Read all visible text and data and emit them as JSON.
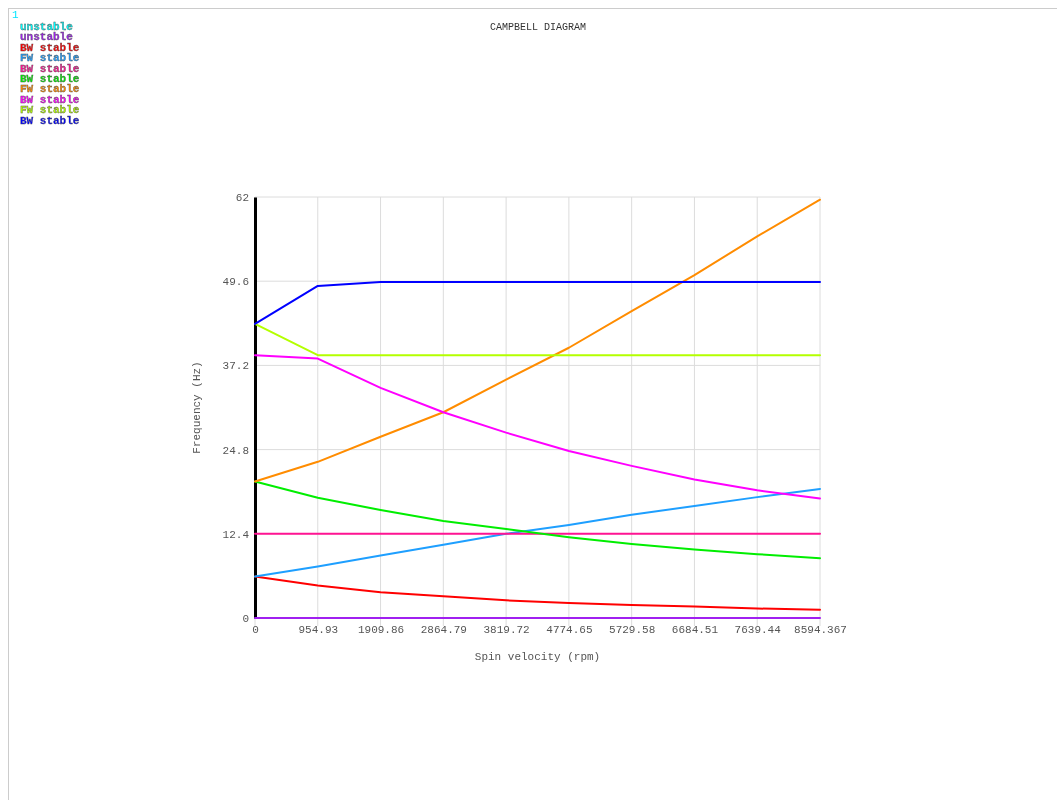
{
  "chart_data": {
    "type": "line",
    "title": "CAMPBELL DIAGRAM",
    "xlabel": "Spin velocity (rpm)",
    "ylabel": "Frequency (Hz)",
    "annotations": [
      "1"
    ],
    "x": [
      0,
      954.93,
      1909.86,
      2864.79,
      3819.72,
      4774.65,
      5729.58,
      6684.51,
      7639.44,
      8594.367
    ],
    "xlim": [
      0,
      8594.367
    ],
    "xticks": [
      0,
      954.93,
      1909.86,
      2864.79,
      3819.72,
      4774.65,
      5729.58,
      6684.51,
      7639.44,
      8594.367
    ],
    "ylim": [
      0,
      62
    ],
    "yticks": [
      0,
      12.4,
      24.8,
      37.2,
      49.6,
      62
    ],
    "grid": true,
    "legend": "top left",
    "marker": "none",
    "line_style": "solid",
    "series": [
      {
        "name": "unstable",
        "color": "#00ffff",
        "values": [
          null,
          null,
          null,
          null,
          null,
          null,
          null,
          null,
          null,
          null
        ]
      },
      {
        "name": "unstable",
        "color": "#a020f0",
        "values": [
          0,
          0,
          0,
          0,
          0,
          0,
          0,
          0,
          0,
          0
        ]
      },
      {
        "name": "BW stable",
        "color": "#ff0000",
        "values": [
          6.1,
          4.8,
          3.8,
          3.2,
          2.6,
          2.2,
          1.9,
          1.7,
          1.4,
          1.2
        ]
      },
      {
        "name": "FW stable",
        "color": "#1e9fff",
        "values": [
          6.1,
          7.6,
          9.2,
          10.8,
          12.4,
          13.7,
          15.2,
          16.5,
          17.8,
          19.0
        ]
      },
      {
        "name": "BW stable",
        "color": "#ff1493",
        "values": [
          12.4,
          12.4,
          12.4,
          12.4,
          12.4,
          12.4,
          12.4,
          12.4,
          12.4,
          12.4
        ]
      },
      {
        "name": "BW stable",
        "color": "#00ee00",
        "values": [
          20.1,
          17.7,
          15.9,
          14.3,
          13.1,
          11.9,
          10.9,
          10.1,
          9.4,
          8.8
        ]
      },
      {
        "name": "FW stable",
        "color": "#ff8c00",
        "values": [
          20.1,
          23.0,
          26.7,
          30.3,
          35.1,
          39.8,
          45.2,
          50.5,
          56.2,
          61.6
        ]
      },
      {
        "name": "BW stable",
        "color": "#ff00ff",
        "values": [
          38.7,
          38.2,
          33.9,
          30.3,
          27.3,
          24.6,
          22.4,
          20.4,
          18.8,
          17.6
        ]
      },
      {
        "name": "FW stable",
        "color": "#b4ff00",
        "values": [
          43.3,
          38.7,
          38.7,
          38.7,
          38.7,
          38.7,
          38.7,
          38.7,
          38.7,
          38.7
        ]
      },
      {
        "name": "BW stable",
        "color": "#0000ff",
        "values": [
          43.3,
          48.9,
          49.5,
          49.5,
          49.5,
          49.5,
          49.5,
          49.5,
          49.5,
          49.5
        ]
      }
    ]
  }
}
